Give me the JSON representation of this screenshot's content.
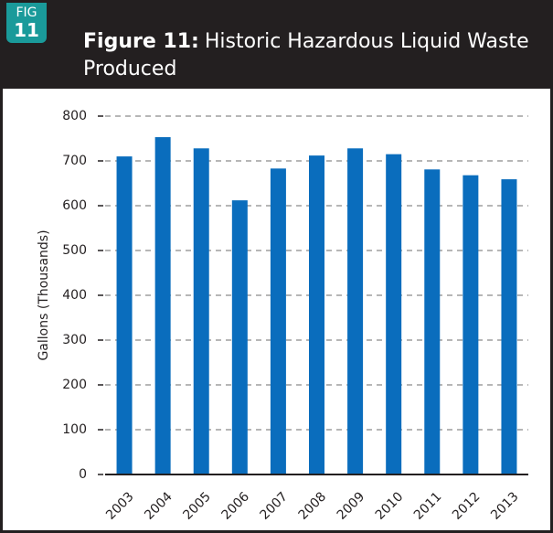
{
  "header": {
    "badge_label": "FIG",
    "badge_number": "11",
    "figure_label": "Figure 11:",
    "title": "Historic Hazardous Liquid Waste Produced"
  },
  "chart_data": {
    "type": "bar",
    "y_label": "Gallons (Thousands)",
    "categories": [
      "2003",
      "2004",
      "2005",
      "2006",
      "2007",
      "2008",
      "2009",
      "2010",
      "2011",
      "2012",
      "2013"
    ],
    "values": [
      710,
      753,
      728,
      612,
      683,
      712,
      728,
      715,
      681,
      668,
      659
    ],
    "color": "#0a6dbd",
    "ylim": [
      0,
      800
    ],
    "yticks": [
      0,
      100,
      200,
      300,
      400,
      500,
      600,
      700,
      800
    ],
    "grid": true
  }
}
